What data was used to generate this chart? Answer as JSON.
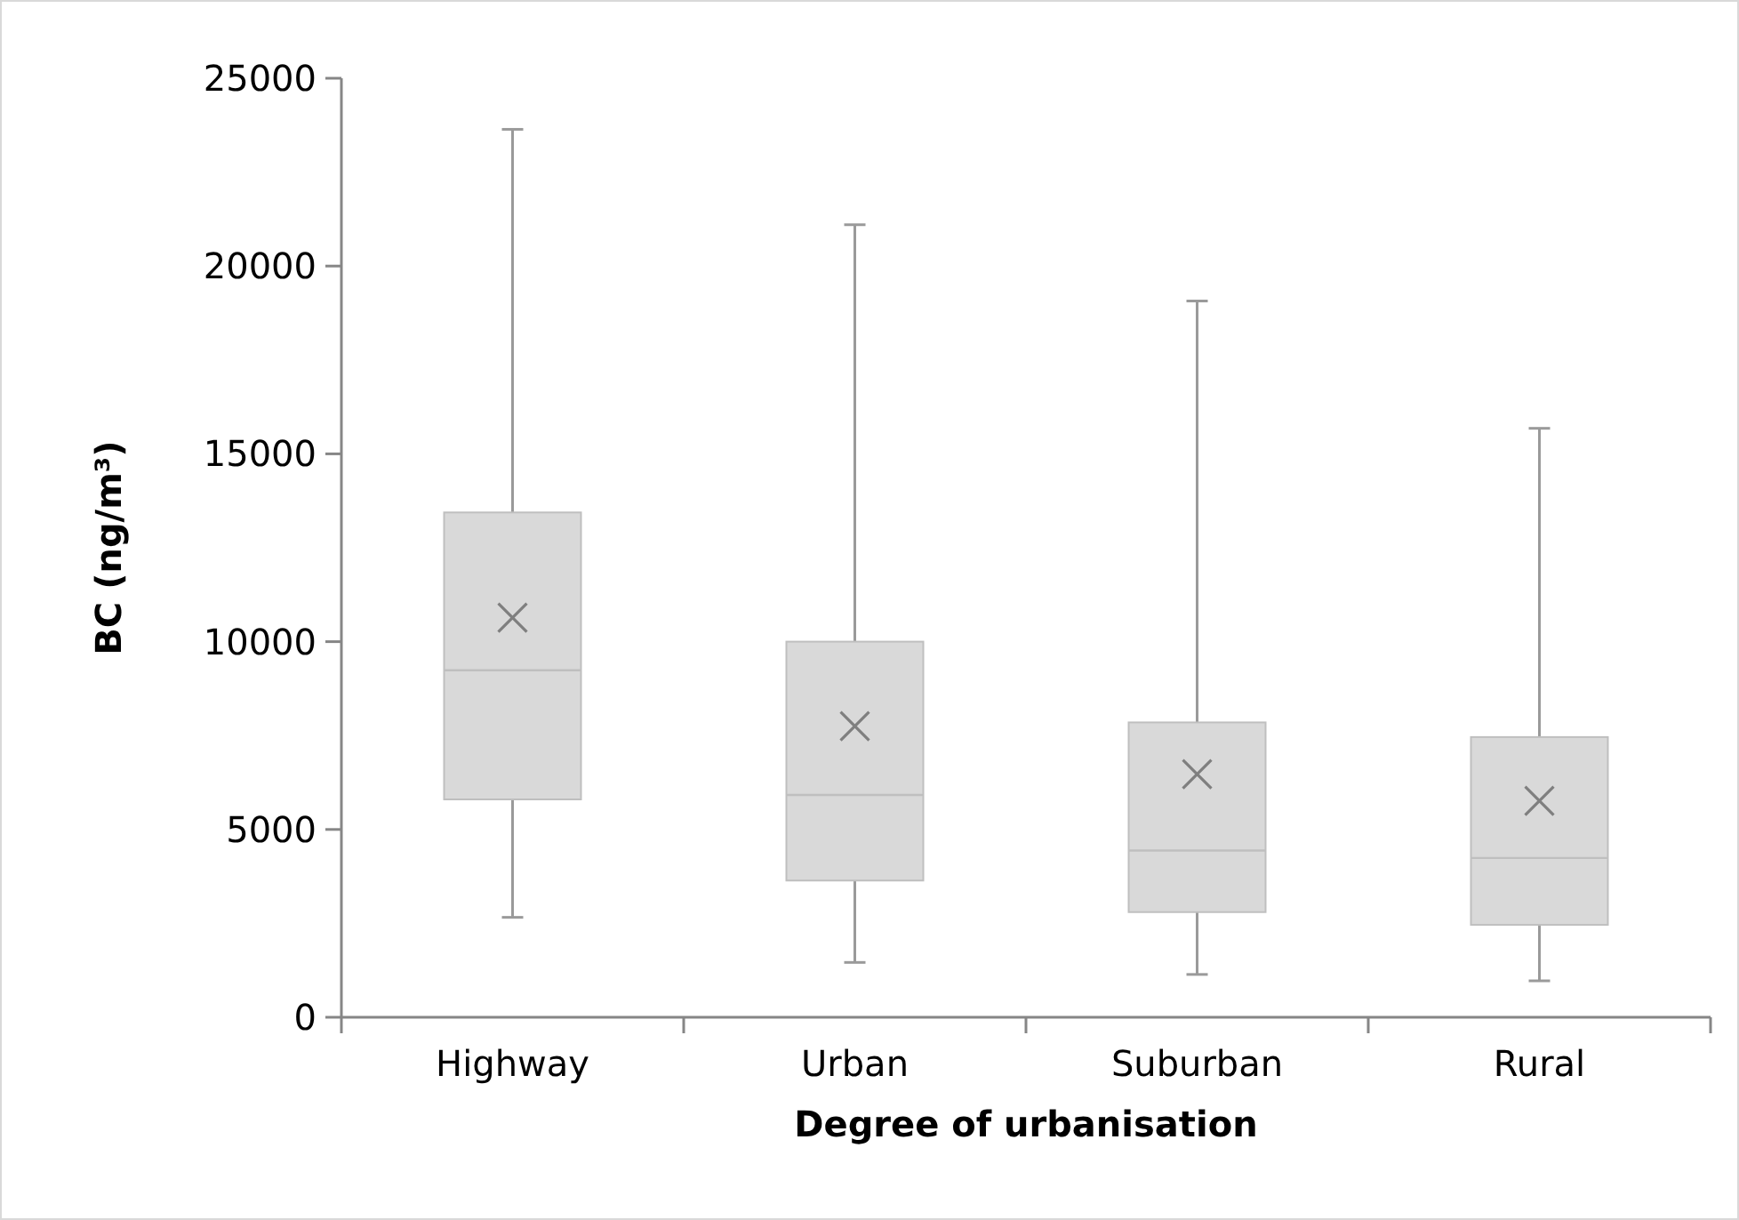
{
  "chart_data": {
    "type": "box",
    "xlabel": "Degree of urbanisation",
    "ylabel": "BC (ng/m³)",
    "categories": [
      "Highway",
      "Urban",
      "Suburban",
      "Rural"
    ],
    "ylim": [
      0,
      25000
    ],
    "yticks": [
      0,
      5000,
      10000,
      15000,
      20000,
      25000
    ],
    "grid": false,
    "marker": "cross",
    "color": "#d9d9d9",
    "boxes": [
      {
        "low": 2660,
        "q1": 5800,
        "median": 9240,
        "q3": 13440,
        "high": 23640,
        "mean": 10640
      },
      {
        "low": 1460,
        "q1": 3640,
        "median": 5920,
        "q3": 10000,
        "high": 21100,
        "mean": 7750
      },
      {
        "low": 1140,
        "q1": 2800,
        "median": 4440,
        "q3": 7850,
        "high": 19070,
        "mean": 6470
      },
      {
        "low": 970,
        "q1": 2460,
        "median": 4240,
        "q3": 7460,
        "high": 15680,
        "mean": 5760
      }
    ]
  }
}
